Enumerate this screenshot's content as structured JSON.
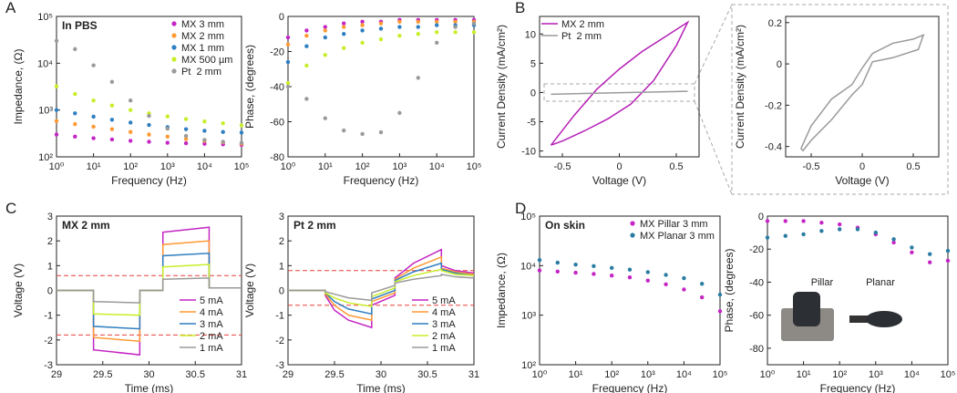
{
  "chart_data": [
    {
      "type": "scatter",
      "panel": "A",
      "title": "In PBS",
      "xlabel": "Frequency (Hz)",
      "ylabel": "Impedance, (Ω)",
      "xlog": true,
      "ylog": true,
      "legend": "upper right",
      "x": [
        1,
        3.16,
        10,
        31.6,
        100,
        316,
        1000,
        3162,
        10000,
        31623,
        100000
      ],
      "xlim": [
        1,
        100000
      ],
      "ylim": [
        100,
        100000
      ],
      "xticks": [
        {
          "value": 1,
          "label": "10⁰"
        },
        {
          "value": 10,
          "label": "10¹"
        },
        {
          "value": 100,
          "label": "10²"
        },
        {
          "value": 1000,
          "label": "10³"
        },
        {
          "value": 10000,
          "label": "10⁴"
        },
        {
          "value": 100000,
          "label": "10⁵"
        }
      ],
      "yticks": [
        {
          "value": 100,
          "label": "10²"
        },
        {
          "value": 1000,
          "label": "10³"
        },
        {
          "value": 10000,
          "label": "10⁴"
        },
        {
          "value": 100000,
          "label": "10⁵"
        }
      ],
      "series": [
        {
          "name": "MX 3 mm",
          "color": "#c425c4",
          "values": [
            300,
            270,
            250,
            235,
            220,
            210,
            200,
            195,
            190,
            185,
            180
          ]
        },
        {
          "name": "MX 2 mm",
          "color": "#ff9933",
          "values": [
            580,
            500,
            440,
            390,
            340,
            300,
            270,
            240,
            220,
            205,
            190
          ]
        },
        {
          "name": "MX 1 mm",
          "color": "#2f7fc1",
          "values": [
            1000,
            850,
            720,
            620,
            540,
            480,
            430,
            390,
            360,
            340,
            330
          ]
        },
        {
          "name": "MX 500 µm",
          "color": "#c8ee2a",
          "values": [
            3200,
            2200,
            1600,
            1250,
            1000,
            850,
            730,
            640,
            570,
            520,
            470
          ]
        },
        {
          "name": "Pt  2 mm",
          "color": "#9a9a9a",
          "values": [
            30000,
            20000,
            9000,
            4000,
            1600,
            750,
            400,
            280,
            230,
            210,
            200
          ]
        }
      ]
    },
    {
      "type": "scatter",
      "xlabel": "Frequency (Hz)",
      "ylabel": "Phase, (degrees)",
      "xlog": true,
      "x": [
        1,
        3.16,
        10,
        31.6,
        100,
        316,
        1000,
        3162,
        10000,
        31623,
        100000
      ],
      "xlim": [
        1,
        100000
      ],
      "ylim": [
        -80,
        0
      ],
      "xticks": [
        {
          "value": 1,
          "label": "10⁰"
        },
        {
          "value": 10,
          "label": "10¹"
        },
        {
          "value": 100,
          "label": "10²"
        },
        {
          "value": 1000,
          "label": "10³"
        },
        {
          "value": 10000,
          "label": "10⁴"
        },
        {
          "value": 100000,
          "label": "10⁵"
        }
      ],
      "yticks": [
        -80,
        -60,
        -40,
        -20,
        0
      ],
      "series": [
        {
          "color": "#c425c4",
          "values": [
            -12,
            -8,
            -6,
            -4,
            -3,
            -3,
            -2,
            -2,
            -2,
            -2,
            -2
          ]
        },
        {
          "color": "#ff9933",
          "values": [
            -16,
            -11,
            -8,
            -6,
            -5,
            -4,
            -3,
            -3,
            -3,
            -3,
            -3
          ]
        },
        {
          "color": "#2f7fc1",
          "values": [
            -26,
            -17,
            -12,
            -10,
            -8,
            -7,
            -6,
            -6,
            -5,
            -5,
            -5
          ]
        },
        {
          "color": "#c8ee2a",
          "values": [
            -38,
            -28,
            -22,
            -18,
            -15,
            -13,
            -11,
            -10,
            -9,
            -9,
            -9
          ]
        },
        {
          "color": "#9a9a9a",
          "values": [
            -40,
            -47,
            -58,
            -65,
            -67,
            -66,
            -55,
            -35,
            -15,
            -6,
            -4
          ]
        }
      ]
    },
    {
      "type": "line",
      "panel": "B",
      "xlabel": "Voltage (V)",
      "ylabel": "Current Density (mA/cm²)",
      "legend": "upper left",
      "xlim": [
        -0.7,
        0.7
      ],
      "ylim": [
        -11,
        13
      ],
      "xticks": [
        -0.5,
        0,
        0.5
      ],
      "yticks": [
        -10,
        -5,
        0,
        5,
        10
      ],
      "series": [
        {
          "name": "MX 2 mm",
          "color": "#b51fb5",
          "x": [
            -0.6,
            -0.4,
            -0.2,
            0,
            0.2,
            0.4,
            0.6,
            0.5,
            0.3,
            0.1,
            -0.1,
            -0.3,
            -0.5,
            -0.6
          ],
          "values": [
            -9,
            -4,
            0.5,
            4,
            7,
            9.5,
            12,
            8,
            2,
            -2,
            -4.5,
            -6.5,
            -8.3,
            -9
          ]
        },
        {
          "name": "Pt  2 mm",
          "color": "#9a9a9a",
          "x": [
            -0.6,
            0.6,
            -0.6
          ],
          "values": [
            -0.3,
            0.2,
            -0.3
          ]
        }
      ]
    },
    {
      "type": "line",
      "xlabel": "Voltage (V)",
      "ylabel": "Current Density (mA/cm²)",
      "xlim": [
        -0.75,
        0.75
      ],
      "ylim": [
        -0.45,
        0.23
      ],
      "xticks": [
        -0.5,
        0,
        0.5
      ],
      "yticks": [
        -0.4,
        -0.2,
        0,
        0.2
      ],
      "series": [
        {
          "color": "#9a9a9a",
          "x": [
            -0.6,
            -0.5,
            -0.3,
            -0.1,
            0,
            0.1,
            0.3,
            0.5,
            0.6,
            0.55,
            0.3,
            0.1,
            0,
            -0.1,
            -0.3,
            -0.5,
            -0.58,
            -0.6
          ],
          "values": [
            -0.41,
            -0.3,
            -0.17,
            -0.1,
            -0.02,
            0.05,
            0.1,
            0.12,
            0.14,
            0.07,
            0.03,
            0.01,
            -0.1,
            -0.15,
            -0.27,
            -0.37,
            -0.42,
            -0.41
          ]
        }
      ]
    },
    {
      "type": "line",
      "panel": "C",
      "title": "MX 2 mm",
      "xlabel": "Time (ms)",
      "ylabel": "Voltage (V)",
      "legend": "lower right",
      "x": [
        29,
        29.4,
        29.4,
        29.9,
        29.9,
        30.15,
        30.15,
        30.65,
        30.65,
        31
      ],
      "xlim": [
        29,
        31
      ],
      "ylim": [
        -3,
        3
      ],
      "xticks": [
        29,
        29.5,
        30,
        30.5,
        31
      ],
      "yticks": [
        -3,
        -2,
        -1,
        0,
        1,
        2,
        3
      ],
      "hlines": [
        0.6,
        -1.8
      ],
      "hline_color": "#e8413c",
      "series": [
        {
          "name": "5 mA",
          "color": "#c425c4",
          "values": [
            0,
            0,
            -2.4,
            -2.6,
            0,
            0,
            2.35,
            2.55,
            0.1,
            0.1
          ]
        },
        {
          "name": "4 mA",
          "color": "#ff9933",
          "values": [
            0,
            0,
            -1.9,
            -2.05,
            0,
            0,
            1.85,
            2.0,
            0.1,
            0.1
          ]
        },
        {
          "name": "3 mA",
          "color": "#2f7fc1",
          "values": [
            0,
            0,
            -1.45,
            -1.55,
            0,
            0,
            1.4,
            1.5,
            0.1,
            0.1
          ]
        },
        {
          "name": "2 mA",
          "color": "#c8ee2a",
          "values": [
            0,
            0,
            -0.95,
            -1.0,
            0,
            0,
            0.95,
            1.05,
            0.1,
            0.1
          ]
        },
        {
          "name": "1 mA",
          "color": "#9a9a9a",
          "values": [
            0,
            0,
            -0.45,
            -0.5,
            0,
            0,
            0.45,
            0.5,
            0.1,
            0.1
          ]
        }
      ]
    },
    {
      "type": "line",
      "title": "Pt 2 mm",
      "xlabel": "Time (ms)",
      "ylabel": "Voltage (V)",
      "legend": "lower right",
      "x": [
        29,
        29.4,
        29.4,
        29.5,
        29.65,
        29.9,
        29.9,
        30.15,
        30.15,
        30.35,
        30.65,
        30.65,
        30.8,
        31
      ],
      "xlim": [
        29,
        31
      ],
      "ylim": [
        -3,
        3
      ],
      "xticks": [
        29,
        29.5,
        30,
        30.5,
        31
      ],
      "yticks": [
        -3,
        -2,
        -1,
        0,
        1,
        2,
        3
      ],
      "hlines": [
        0.8,
        -0.6
      ],
      "hline_color": "#e8413c",
      "series": [
        {
          "name": "5 mA",
          "color": "#c425c4",
          "values": [
            0,
            0,
            -0.2,
            -0.8,
            -1.2,
            -1.5,
            -0.6,
            -0.2,
            0.5,
            1.1,
            1.65,
            1.0,
            0.8,
            0.7
          ]
        },
        {
          "name": "4 mA",
          "color": "#ff9933",
          "values": [
            0,
            0,
            -0.15,
            -0.6,
            -1.0,
            -1.2,
            -0.45,
            -0.1,
            0.45,
            0.9,
            1.35,
            0.9,
            0.75,
            0.65
          ]
        },
        {
          "name": "3 mA",
          "color": "#2f7fc1",
          "values": [
            0,
            0,
            -0.1,
            -0.45,
            -0.75,
            -0.95,
            -0.35,
            0,
            0.4,
            0.75,
            1.1,
            0.85,
            0.7,
            0.6
          ]
        },
        {
          "name": "2 mA",
          "color": "#c8ee2a",
          "values": [
            0,
            0,
            -0.1,
            -0.3,
            -0.5,
            -0.65,
            -0.25,
            0.1,
            0.35,
            0.6,
            0.85,
            0.8,
            0.65,
            0.6
          ]
        },
        {
          "name": "1 mA",
          "color": "#9a9a9a",
          "values": [
            0,
            0,
            -0.05,
            -0.15,
            -0.3,
            -0.4,
            -0.1,
            0.2,
            0.3,
            0.45,
            0.6,
            0.65,
            0.55,
            0.5
          ]
        }
      ]
    },
    {
      "type": "scatter",
      "panel": "D",
      "title": "On skin",
      "xlabel": "Frequency (Hz)",
      "ylabel": "Impedance, (Ω)",
      "xlog": true,
      "ylog": true,
      "legend": "upper right",
      "x": [
        1,
        3.16,
        10,
        31.6,
        100,
        316,
        1000,
        3162,
        10000,
        31623,
        100000
      ],
      "xlim": [
        1,
        100000
      ],
      "ylim": [
        100,
        100000
      ],
      "xticks": [
        {
          "value": 1,
          "label": "10⁰"
        },
        {
          "value": 10,
          "label": "10¹"
        },
        {
          "value": 100,
          "label": "10²"
        },
        {
          "value": 1000,
          "label": "10³"
        },
        {
          "value": 10000,
          "label": "10⁴"
        },
        {
          "value": 100000,
          "label": "10⁵"
        }
      ],
      "yticks": [
        {
          "value": 100,
          "label": "10²"
        },
        {
          "value": 1000,
          "label": "10³"
        },
        {
          "value": 10000,
          "label": "10⁴"
        },
        {
          "value": 100000,
          "label": "10⁵"
        }
      ],
      "series": [
        {
          "name": "MX Pillar 3 mm",
          "color": "#c425c4",
          "values": [
            8000,
            7600,
            7200,
            6800,
            6300,
            5800,
            5000,
            4200,
            3300,
            2300,
            1200
          ]
        },
        {
          "name": "MX Planar 3 mm",
          "color": "#2a7ca3",
          "values": [
            13000,
            11500,
            10500,
            9800,
            9000,
            8300,
            7400,
            6500,
            5600,
            4300,
            2600
          ]
        }
      ]
    },
    {
      "type": "scatter",
      "xlabel": "Frequency (Hz)",
      "ylabel": "Phase, (degrees)",
      "xlog": true,
      "annotations": [
        "Pillar",
        "Planar"
      ],
      "x": [
        1,
        3.16,
        10,
        31.6,
        100,
        316,
        1000,
        3162,
        10000,
        31623,
        100000
      ],
      "xlim": [
        1,
        100000
      ],
      "ylim": [
        -90,
        0
      ],
      "xticks": [
        {
          "value": 1,
          "label": "10⁰"
        },
        {
          "value": 10,
          "label": "10¹"
        },
        {
          "value": 100,
          "label": "10²"
        },
        {
          "value": 1000,
          "label": "10³"
        },
        {
          "value": 10000,
          "label": "10⁴"
        },
        {
          "value": 100000,
          "label": "10⁵"
        }
      ],
      "yticks": [
        -80,
        -60,
        -40,
        -20,
        0
      ],
      "series": [
        {
          "color": "#c425c4",
          "values": [
            -3,
            -3,
            -3,
            -4,
            -5,
            -7,
            -11,
            -16,
            -22,
            -28,
            -27
          ]
        },
        {
          "color": "#2a7ca3",
          "values": [
            -13,
            -12,
            -11,
            -9,
            -8,
            -8,
            -10,
            -14,
            -19,
            -23,
            -21
          ]
        }
      ]
    }
  ]
}
